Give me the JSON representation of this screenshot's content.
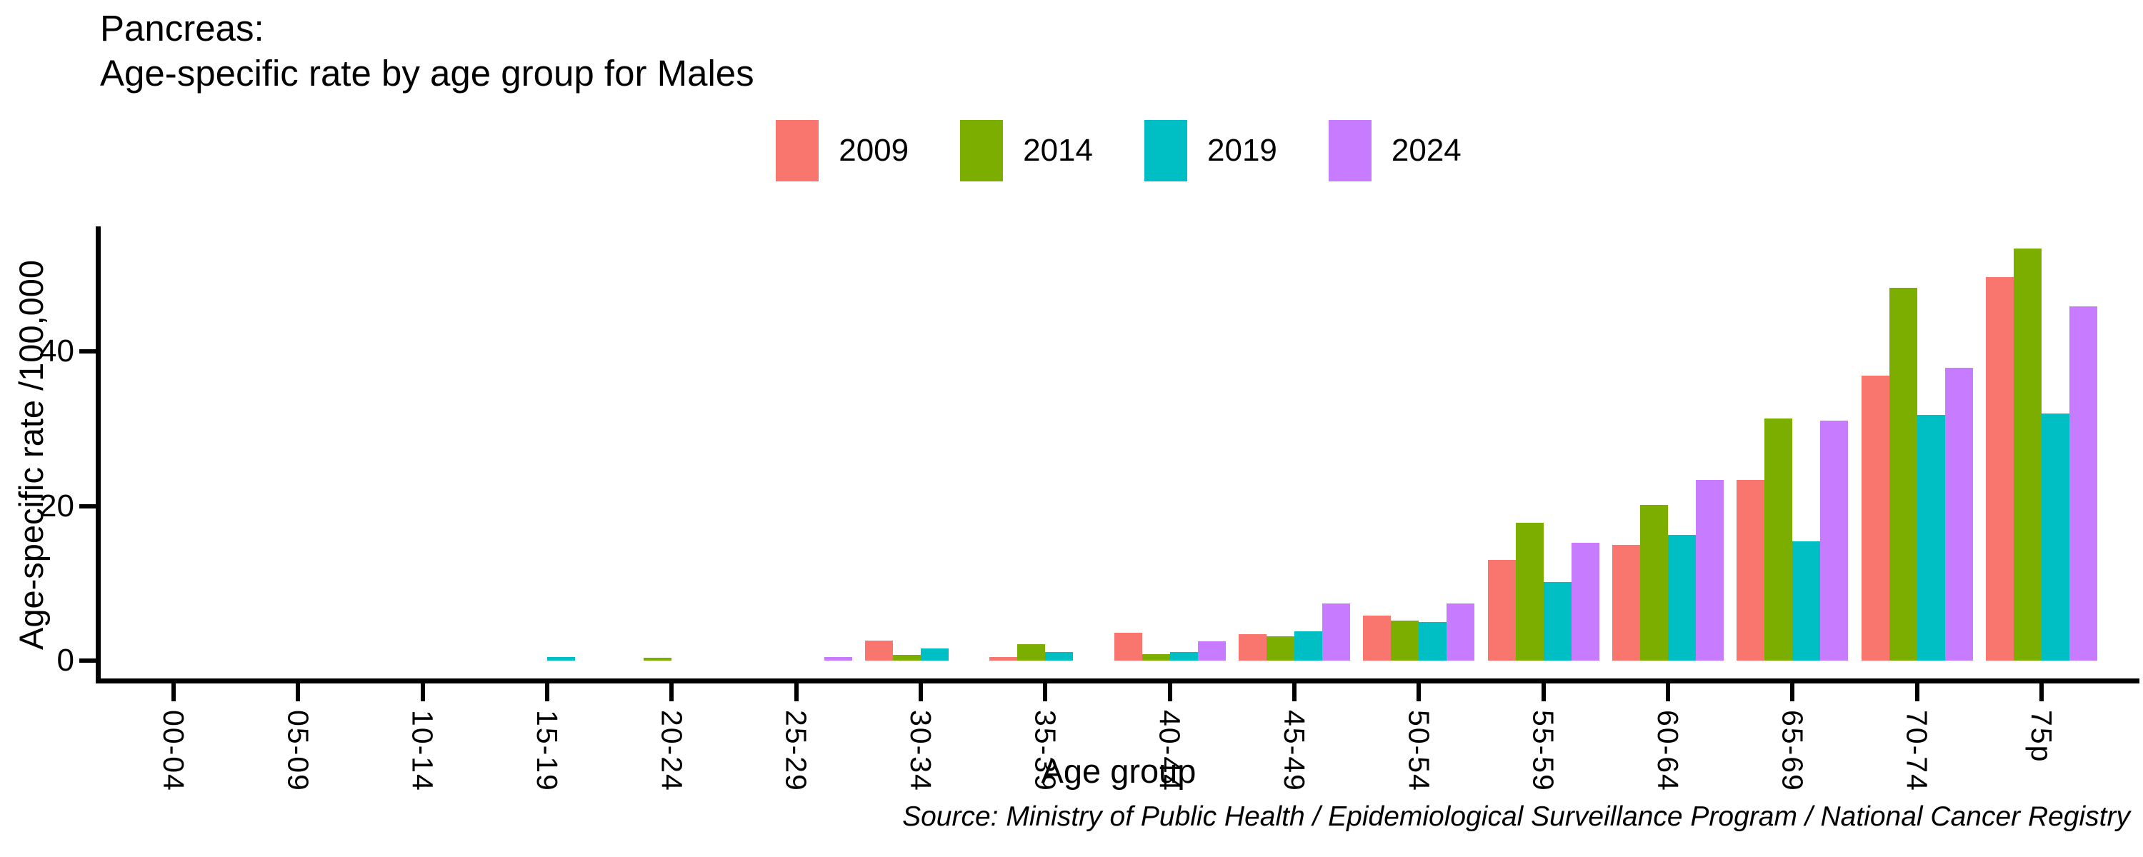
{
  "title": {
    "line1": "Pancreas:",
    "line2": "Age-specific rate by age group for Males"
  },
  "source": "Source: Ministry of Public Health / Epidemiological Surveillance Program / National Cancer Registry",
  "chart_data": {
    "type": "bar",
    "title": "Pancreas: Age-specific rate by age group for Males",
    "xlabel": "Age group",
    "ylabel": "Age-specific rate /100,000",
    "legend_position": "top-center",
    "grid": false,
    "yticks": [
      0,
      20,
      40
    ],
    "ylim": [
      0,
      56
    ],
    "categories": [
      "00-04",
      "05-09",
      "10-14",
      "15-19",
      "20-24",
      "25-29",
      "30-34",
      "35-39",
      "40-44",
      "45-49",
      "50-54",
      "55-59",
      "60-64",
      "65-69",
      "70-74",
      "75p"
    ],
    "series": [
      {
        "name": "2009",
        "color": "#F8766D",
        "values": [
          0,
          0,
          0,
          0,
          0,
          0,
          2.6,
          0.5,
          3.6,
          3.4,
          5.8,
          13.0,
          15.0,
          23.4,
          36.9,
          49.6
        ]
      },
      {
        "name": "2014",
        "color": "#7CAE00",
        "values": [
          0,
          0,
          0,
          0,
          0.4,
          0,
          0.7,
          2.1,
          0.8,
          3.1,
          5.2,
          17.8,
          20.1,
          31.3,
          48.2,
          53.3
        ]
      },
      {
        "name": "2019",
        "color": "#00BFC4",
        "values": [
          0,
          0,
          0,
          0.5,
          0,
          0,
          1.6,
          1.1,
          1.1,
          3.8,
          5.0,
          10.2,
          16.3,
          15.4,
          31.8,
          32.0
        ]
      },
      {
        "name": "2024",
        "color": "#C77CFF",
        "values": [
          0,
          0,
          0,
          0,
          0,
          0.5,
          0,
          0,
          2.5,
          7.4,
          7.4,
          15.2,
          23.4,
          31.0,
          37.9,
          45.8
        ]
      }
    ]
  }
}
